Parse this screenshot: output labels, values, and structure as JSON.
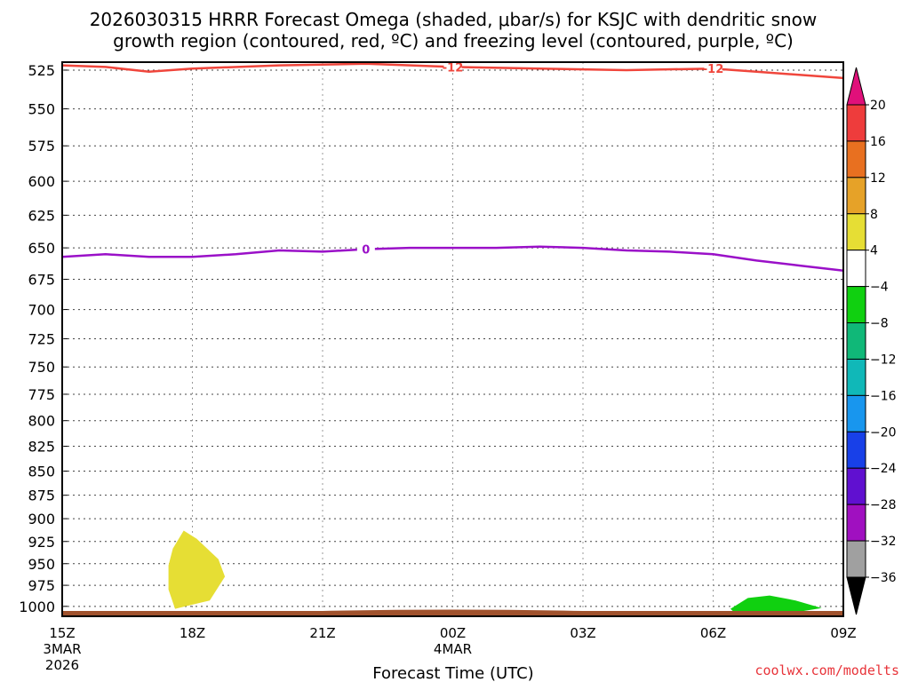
{
  "chart_data": {
    "type": "time-height",
    "title_line1": "2026030315 HRRR Forecast Omega (shaded, μbar/s) for KSJC with dendritic snow",
    "title_line2": "growth region (contoured, red, ºC) and freezing level (contoured, purple, ºC)",
    "xlabel": "Forecast Time (UTC)",
    "credit": "coolwx.com/modelts",
    "x_range_hours": [
      0,
      18
    ],
    "y_range_hpa": [
      520,
      1012
    ],
    "y_ticks": [
      525,
      550,
      575,
      600,
      625,
      650,
      675,
      700,
      725,
      750,
      775,
      800,
      825,
      850,
      875,
      900,
      925,
      950,
      975,
      1000
    ],
    "x_ticks": [
      {
        "hour": 0,
        "label": "15Z",
        "sub1": "3MAR",
        "sub2": "2026"
      },
      {
        "hour": 3,
        "label": "18Z",
        "sub1": "",
        "sub2": ""
      },
      {
        "hour": 6,
        "label": "21Z",
        "sub1": "",
        "sub2": ""
      },
      {
        "hour": 9,
        "label": "00Z",
        "sub1": "4MAR",
        "sub2": ""
      },
      {
        "hour": 12,
        "label": "03Z",
        "sub1": "",
        "sub2": ""
      },
      {
        "hour": 15,
        "label": "06Z",
        "sub1": "",
        "sub2": ""
      },
      {
        "hour": 18,
        "label": "09Z",
        "sub1": "",
        "sub2": ""
      }
    ],
    "dgz_contour": {
      "label": "-12",
      "color": "#f0463c",
      "points": [
        [
          0,
          522
        ],
        [
          1,
          523
        ],
        [
          2,
          526
        ],
        [
          3,
          524
        ],
        [
          5,
          522
        ],
        [
          7,
          521
        ],
        [
          9,
          523
        ],
        [
          11,
          524
        ],
        [
          13,
          525
        ],
        [
          15,
          524
        ],
        [
          16,
          526
        ],
        [
          18,
          530
        ]
      ],
      "label_hours": [
        9,
        15
      ]
    },
    "freezing_contour": {
      "label": "0",
      "color": "#9a10c8",
      "points": [
        [
          0,
          657
        ],
        [
          1,
          655
        ],
        [
          2,
          657
        ],
        [
          3,
          657
        ],
        [
          4,
          655
        ],
        [
          5,
          652
        ],
        [
          6,
          653
        ],
        [
          7,
          651
        ],
        [
          8,
          650
        ],
        [
          9,
          650
        ],
        [
          10,
          650
        ],
        [
          11,
          649
        ],
        [
          12,
          650
        ],
        [
          13,
          652
        ],
        [
          14,
          653
        ],
        [
          15,
          655
        ],
        [
          16,
          660
        ],
        [
          17,
          664
        ],
        [
          18,
          668
        ]
      ],
      "label_hours": [
        7
      ]
    },
    "terrain_color": "#a0522d",
    "omega_areas": [
      {
        "value_range": "4 to 8",
        "color": "#e6de34",
        "points": [
          [
            2.45,
            952
          ],
          [
            2.55,
            933
          ],
          [
            2.8,
            913
          ],
          [
            3.1,
            922
          ],
          [
            3.6,
            945
          ],
          [
            3.75,
            965
          ],
          [
            3.4,
            993
          ],
          [
            3.0,
            998
          ],
          [
            2.6,
            1003
          ],
          [
            2.45,
            980
          ]
        ]
      },
      {
        "value_range": "-8 to -4",
        "color": "#10d010",
        "points": [
          [
            15.4,
            1003
          ],
          [
            15.8,
            990
          ],
          [
            16.3,
            987
          ],
          [
            16.9,
            993
          ],
          [
            17.5,
            1002
          ],
          [
            16.8,
            1008
          ],
          [
            16.0,
            1010
          ],
          [
            15.5,
            1008
          ]
        ]
      }
    ],
    "colorbar": {
      "labels": [
        "20",
        "16",
        "12",
        "8",
        "4",
        "−4",
        "−8",
        "−12",
        "−16",
        "−20",
        "−24",
        "−28",
        "−32",
        "−36"
      ],
      "colors": [
        "#ee3c3c",
        "#e87020",
        "#e6a228",
        "#e6de34",
        "#ffffff",
        "#10d010",
        "#10b878",
        "#10b8b8",
        "#1896ee",
        "#1840e8",
        "#6010d0",
        "#a010c0",
        "#a0a0a0"
      ],
      "top_arrow_color": "#e0107a",
      "bottom_arrow_color": "#000000"
    }
  }
}
